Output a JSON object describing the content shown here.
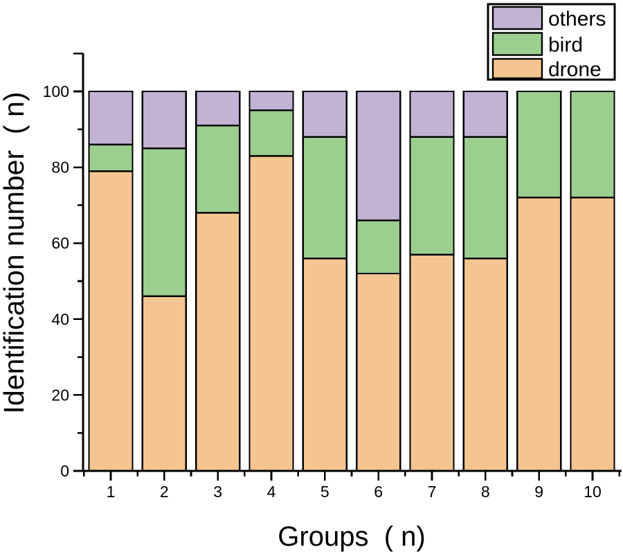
{
  "chart_data": {
    "type": "bar",
    "subtype": "stacked-vertical",
    "categories": [
      "1",
      "2",
      "3",
      "4",
      "5",
      "6",
      "7",
      "8",
      "9",
      "10"
    ],
    "series": [
      {
        "name": "drone",
        "color": "#F5C591",
        "values": [
          79,
          46,
          68,
          83,
          56,
          52,
          57,
          56,
          72,
          72
        ]
      },
      {
        "name": "bird",
        "color": "#9CCE8F",
        "values": [
          7,
          39,
          23,
          12,
          32,
          14,
          31,
          32,
          28,
          28
        ]
      },
      {
        "name": "others",
        "color": "#C2B2D4",
        "values": [
          14,
          15,
          9,
          5,
          12,
          34,
          12,
          12,
          0,
          0
        ]
      }
    ],
    "stack_totals": [
      100,
      100,
      100,
      100,
      100,
      100,
      100,
      100,
      100,
      100
    ],
    "title": "",
    "xlabel": "Groups  ( n)",
    "ylabel": "Identification number  ( n)",
    "ylim": [
      0,
      110
    ],
    "yticks": [
      0,
      20,
      40,
      60,
      80,
      100
    ],
    "yticks_minor": [
      10,
      30,
      50,
      70,
      90,
      110
    ],
    "grid": false,
    "legend_position": "top-right",
    "legend_order": [
      "others",
      "bird",
      "drone"
    ],
    "bar_outline_color": "#000000"
  },
  "axes": {
    "x_label": "Groups  ( n)",
    "y_label": "Identification number  ( n)",
    "y_tick_labels": [
      "0",
      "20",
      "40",
      "60",
      "80",
      "100"
    ],
    "x_tick_labels": [
      "1",
      "2",
      "3",
      "4",
      "5",
      "6",
      "7",
      "8",
      "9",
      "10"
    ]
  },
  "legend": {
    "items": [
      {
        "label": "others",
        "color": "#C2B2D4"
      },
      {
        "label": "bird",
        "color": "#9CCE8F"
      },
      {
        "label": "drone",
        "color": "#F5C591"
      }
    ]
  },
  "colors": {
    "background": "#FFFFFF",
    "axis": "#000000",
    "drone": "#F5C591",
    "bird": "#9CCE8F",
    "others": "#C2B2D4"
  }
}
